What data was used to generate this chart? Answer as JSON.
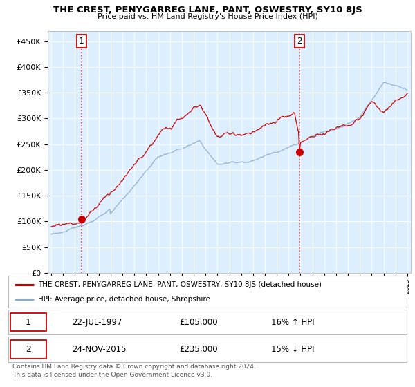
{
  "title": "THE CREST, PENYGARREG LANE, PANT, OSWESTRY, SY10 8JS",
  "subtitle": "Price paid vs. HM Land Registry's House Price Index (HPI)",
  "legend_line1": "THE CREST, PENYGARREG LANE, PANT, OSWESTRY, SY10 8JS (detached house)",
  "legend_line2": "HPI: Average price, detached house, Shropshire",
  "red_line_color": "#cc0000",
  "blue_line_color": "#88aacc",
  "purchase1_date": "22-JUL-1997",
  "purchase1_price": 105000,
  "purchase1_label": "16% ↑ HPI",
  "purchase2_date": "24-NOV-2015",
  "purchase2_price": 235000,
  "purchase2_label": "15% ↓ HPI",
  "footnote": "Contains HM Land Registry data © Crown copyright and database right 2024.\nThis data is licensed under the Open Government Licence v3.0.",
  "ylim": [
    0,
    470000
  ],
  "yticks": [
    0,
    50000,
    100000,
    150000,
    200000,
    250000,
    300000,
    350000,
    400000,
    450000
  ],
  "plot_bg_color": "#ddeeff",
  "grid_color": "#ffffff",
  "t1": 1997.55,
  "p1": 105000,
  "t2": 2015.9,
  "p2": 235000
}
